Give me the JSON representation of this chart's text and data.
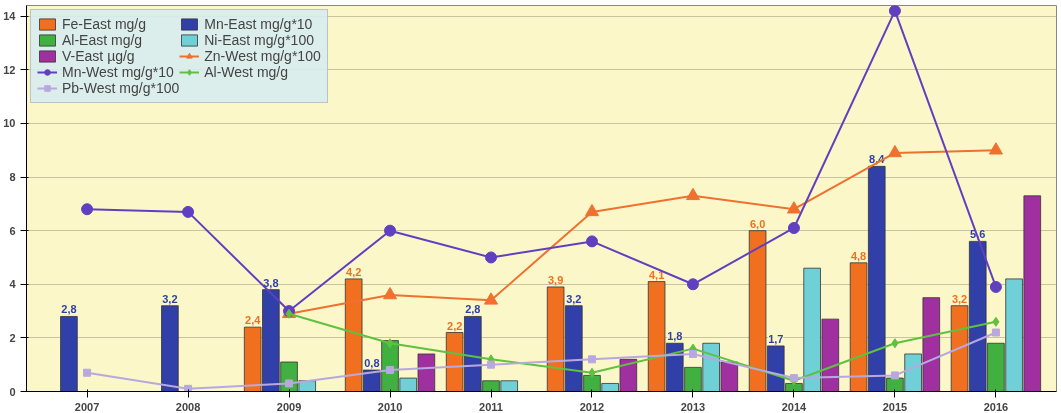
{
  "chart_data": {
    "type": "bar",
    "categories": [
      "2007",
      "2008",
      "2009",
      "2010",
      "2011",
      "2012",
      "2013",
      "2014",
      "2015",
      "2016"
    ],
    "ylim": [
      0,
      14.4
    ],
    "yticks": [
      0,
      2,
      4,
      6,
      8,
      10,
      12,
      14
    ],
    "grid": "y",
    "legend": "top left",
    "series": [
      {
        "name": "Fe-East mg/g",
        "color": "#f07020",
        "values": [
          null,
          null,
          2.4,
          4.2,
          2.2,
          3.9,
          4.1,
          6.0,
          4.8,
          3.2
        ],
        "value_labels": [
          null,
          null,
          "2,4",
          "4,2",
          "2,2",
          "3,9",
          "4,1",
          "6,0",
          "4,8",
          "3,2"
        ]
      },
      {
        "name": "Mn-East mg/g*10",
        "color": "#3040a8",
        "values": [
          2.8,
          3.2,
          3.8,
          0.8,
          2.8,
          3.2,
          1.8,
          1.7,
          8.4,
          5.6
        ],
        "value_labels": [
          "2,8",
          "3,2",
          "3,8",
          "0,8",
          "2,8",
          "3,2",
          "1,8",
          "1,7",
          "8,4",
          "5,6"
        ]
      },
      {
        "name": "Al-East mg/g",
        "color": "#40b040",
        "values": [
          null,
          null,
          1.1,
          1.9,
          0.4,
          0.6,
          0.9,
          0.3,
          0.5,
          1.8
        ]
      },
      {
        "name": "Ni-East mg/g*100",
        "color": "#70d0d8",
        "values": [
          null,
          null,
          0.4,
          0.5,
          0.4,
          0.3,
          1.8,
          4.6,
          1.4,
          4.2
        ]
      },
      {
        "name": "V-East µg/g",
        "color": "#a030a0",
        "values": [
          null,
          null,
          null,
          1.4,
          null,
          1.2,
          1.1,
          2.7,
          3.5,
          7.3
        ]
      },
      {
        "name": "Zn-West mg/g*100",
        "type": "line",
        "marker": "triangle",
        "color": "#f07030",
        "values": [
          null,
          null,
          2.9,
          3.6,
          3.4,
          6.7,
          7.3,
          6.8,
          8.9,
          9.0
        ]
      },
      {
        "name": "Mn-West mg/g*10",
        "type": "line",
        "marker": "circle",
        "color": "#6040c0",
        "values": [
          6.8,
          6.7,
          3.0,
          6.0,
          5.0,
          5.6,
          4.0,
          6.1,
          14.2,
          3.9
        ]
      },
      {
        "name": "Al-West mg/g",
        "type": "line",
        "marker": "diamond",
        "color": "#60c040",
        "values": [
          null,
          null,
          2.9,
          1.8,
          1.2,
          0.7,
          1.6,
          0.4,
          1.8,
          2.6
        ]
      },
      {
        "name": "Pb-West mg/g*100",
        "type": "line",
        "marker": "square",
        "color": "#b8a8e0",
        "values": [
          0.7,
          0.1,
          0.3,
          0.8,
          1.0,
          1.2,
          1.4,
          0.5,
          0.6,
          2.2
        ]
      }
    ]
  }
}
